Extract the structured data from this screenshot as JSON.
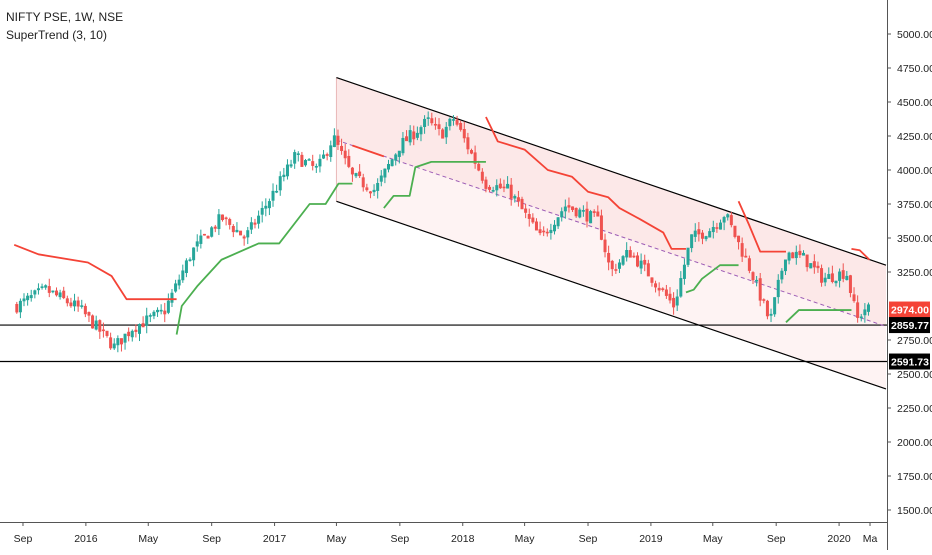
{
  "legend": {
    "symbol": "NIFTY PSE, 1W, NSE",
    "indicator": "SuperTrend (3, 10)"
  },
  "colors": {
    "up": "#26a69a",
    "down": "#ef5350",
    "candle_up_body": "#ffffff",
    "supertrend_up": "#4caf50",
    "supertrend_down": "#f44336",
    "channel_fill": "#fce4e4",
    "channel_line": "#000000",
    "midline": "#9c5bb5",
    "price_tag_red": "#f44336",
    "price_tag_black": "#000000"
  },
  "chart_data": {
    "type": "candlestick",
    "x_axis": {
      "tick_labels": [
        "Sep",
        "2016",
        "May",
        "Sep",
        "2017",
        "May",
        "Sep",
        "2018",
        "May",
        "Sep",
        "2019",
        "May",
        "Sep",
        "2020",
        "Ma"
      ],
      "tick_dates": [
        "2015-09-01",
        "2016-01-01",
        "2016-05-01",
        "2016-09-01",
        "2017-01-01",
        "2017-05-01",
        "2017-09-01",
        "2018-01-01",
        "2018-05-01",
        "2018-09-01",
        "2019-01-01",
        "2019-05-01",
        "2019-09-01",
        "2020-01-01",
        "2020-03-01"
      ]
    },
    "y_axis": {
      "tick_labels": [
        "5000.00",
        "4750.00",
        "4500.00",
        "4250.00",
        "4000.00",
        "3750.00",
        "3500.00",
        "3250.00",
        "2750.00",
        "2500.00",
        "2250.00",
        "2000.00",
        "1750.00",
        "1500.00"
      ],
      "ylim": [
        1400,
        5250
      ]
    },
    "price_tags": [
      {
        "value": "2974.00",
        "kind": "last_price"
      },
      {
        "value": "2859.77",
        "kind": "support"
      },
      {
        "value": "2591.73",
        "kind": "support"
      }
    ],
    "horizontal_lines": [
      2859.77,
      2591.73
    ],
    "channel": {
      "upper": [
        [
          "2017-05-01",
          4680
        ],
        [
          "2020-04-01",
          3300
        ]
      ],
      "lower": [
        [
          "2017-05-01",
          3770
        ],
        [
          "2020-04-01",
          2390
        ]
      ],
      "mid": [
        [
          "2017-05-01",
          4220
        ],
        [
          "2020-04-01",
          2850
        ]
      ]
    },
    "close_anchors": [
      [
        "2015-08-20",
        3000
      ],
      [
        "2015-10-15",
        3120
      ],
      [
        "2015-12-20",
        2980
      ],
      [
        "2016-02-25",
        2700
      ],
      [
        "2016-04-01",
        2840
      ],
      [
        "2016-06-01",
        2960
      ],
      [
        "2016-07-25",
        3400
      ],
      [
        "2016-09-20",
        3650
      ],
      [
        "2016-11-05",
        3500
      ],
      [
        "2016-12-25",
        3800
      ],
      [
        "2017-02-10",
        4100
      ],
      [
        "2017-03-25",
        4000
      ],
      [
        "2017-04-25",
        4240
      ],
      [
        "2017-06-01",
        3950
      ],
      [
        "2017-07-15",
        3850
      ],
      [
        "2017-09-01",
        4180
      ],
      [
        "2017-10-25",
        4360
      ],
      [
        "2017-11-20",
        4260
      ],
      [
        "2017-12-15",
        4380
      ],
      [
        "2018-02-15",
        3900
      ],
      [
        "2018-04-01",
        3850
      ],
      [
        "2018-06-01",
        3500
      ],
      [
        "2018-07-20",
        3740
      ],
      [
        "2018-09-20",
        3630
      ],
      [
        "2018-10-15",
        3250
      ],
      [
        "2018-11-20",
        3400
      ],
      [
        "2018-12-25",
        3250
      ],
      [
        "2019-02-15",
        3000
      ],
      [
        "2019-03-20",
        3500
      ],
      [
        "2019-04-25",
        3560
      ],
      [
        "2019-05-25",
        3680
      ],
      [
        "2019-07-15",
        3250
      ],
      [
        "2019-08-20",
        2880
      ],
      [
        "2019-09-20",
        3400
      ],
      [
        "2019-10-25",
        3350
      ],
      [
        "2019-12-01",
        3200
      ],
      [
        "2020-01-15",
        3250
      ],
      [
        "2020-02-05",
        2900
      ],
      [
        "2020-02-20",
        2980
      ],
      [
        "2020-02-29",
        2974
      ]
    ],
    "supertrend": [
      {
        "trend": "down",
        "points": [
          [
            "2015-08-15",
            3450
          ],
          [
            "2015-10-01",
            3380
          ],
          [
            "2016-01-05",
            3320
          ],
          [
            "2016-02-20",
            3220
          ],
          [
            "2016-03-20",
            3050
          ],
          [
            "2016-06-25",
            3050
          ]
        ]
      },
      {
        "trend": "up",
        "points": [
          [
            "2016-06-25",
            2790
          ],
          [
            "2016-07-05",
            3000
          ],
          [
            "2016-08-05",
            3150
          ],
          [
            "2016-09-20",
            3340
          ],
          [
            "2016-12-01",
            3460
          ],
          [
            "2017-01-10",
            3460
          ],
          [
            "2017-03-10",
            3750
          ],
          [
            "2017-04-10",
            3750
          ],
          [
            "2017-05-05",
            3900
          ],
          [
            "2017-06-01",
            3900
          ]
        ]
      },
      {
        "trend": "down",
        "points": [
          [
            "2017-06-01",
            4180
          ],
          [
            "2017-08-01",
            4100
          ]
        ]
      },
      {
        "trend": "up",
        "points": [
          [
            "2017-08-01",
            3720
          ],
          [
            "2017-08-20",
            3810
          ],
          [
            "2017-09-20",
            3810
          ],
          [
            "2017-10-01",
            4020
          ],
          [
            "2017-11-01",
            4060
          ],
          [
            "2018-02-15",
            4060
          ]
        ]
      },
      {
        "trend": "down",
        "points": [
          [
            "2018-02-15",
            4390
          ],
          [
            "2018-03-10",
            4210
          ],
          [
            "2018-05-01",
            4150
          ],
          [
            "2018-06-15",
            4000
          ],
          [
            "2018-08-01",
            3950
          ],
          [
            "2018-09-01",
            3840
          ],
          [
            "2018-10-10",
            3800
          ],
          [
            "2018-11-01",
            3720
          ],
          [
            "2018-12-10",
            3640
          ],
          [
            "2019-01-25",
            3540
          ],
          [
            "2019-02-10",
            3420
          ],
          [
            "2019-03-10",
            3420
          ]
        ]
      },
      {
        "trend": "up",
        "points": [
          [
            "2019-03-10",
            3100
          ],
          [
            "2019-03-25",
            3120
          ],
          [
            "2019-04-10",
            3200
          ],
          [
            "2019-05-15",
            3300
          ],
          [
            "2019-06-20",
            3300
          ]
        ]
      },
      {
        "trend": "down",
        "points": [
          [
            "2019-06-20",
            3770
          ],
          [
            "2019-07-10",
            3600
          ],
          [
            "2019-08-01",
            3400
          ],
          [
            "2019-09-20",
            3400
          ]
        ]
      },
      {
        "trend": "up",
        "points": [
          [
            "2019-09-20",
            2880
          ],
          [
            "2019-10-15",
            2970
          ],
          [
            "2019-12-20",
            2970
          ],
          [
            "2020-01-25",
            2970
          ]
        ]
      },
      {
        "trend": "down",
        "points": [
          [
            "2020-01-25",
            3420
          ],
          [
            "2020-02-10",
            3410
          ],
          [
            "2020-02-29",
            3340
          ]
        ]
      }
    ]
  }
}
